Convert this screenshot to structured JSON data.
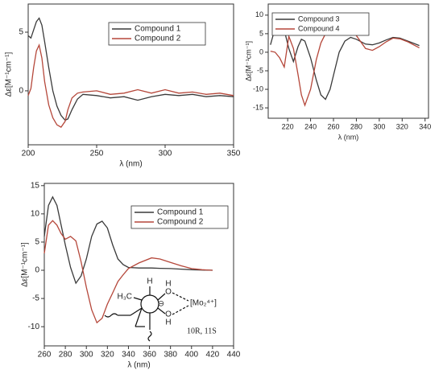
{
  "chart_data": [
    {
      "type": "line",
      "xlabel": "λ (nm)",
      "ylabel": "Δε[M⁻¹cm⁻¹]",
      "xlim": [
        200,
        350
      ],
      "ylim": [
        -4.6,
        7.4
      ],
      "xticks": [
        200,
        250,
        300,
        350
      ],
      "yticks": [
        0,
        5
      ],
      "x": [
        200,
        202,
        204,
        206,
        208,
        210,
        212,
        215,
        218,
        221,
        224,
        227,
        229,
        232,
        236,
        240,
        250,
        260,
        270,
        280,
        290,
        300,
        310,
        320,
        330,
        340,
        350
      ],
      "series": [
        {
          "name": "Compound 1",
          "color": "#3a3a3a",
          "values": [
            4.7,
            4.5,
            5.2,
            5.9,
            6.2,
            5.6,
            4.2,
            2.0,
            0.0,
            -1.3,
            -2.1,
            -2.5,
            -2.4,
            -1.6,
            -0.7,
            -0.3,
            -0.4,
            -0.6,
            -0.5,
            -0.8,
            -0.5,
            -0.3,
            -0.4,
            -0.3,
            -0.5,
            -0.4,
            -0.5
          ]
        },
        {
          "name": "Compound 2",
          "color": "#b5473a",
          "values": [
            -0.4,
            0.2,
            2.0,
            3.4,
            3.9,
            2.8,
            0.8,
            -1.2,
            -2.3,
            -2.9,
            -3.1,
            -2.6,
            -1.6,
            -0.6,
            -0.2,
            -0.1,
            0.0,
            -0.3,
            -0.2,
            0.1,
            -0.2,
            0.1,
            -0.2,
            -0.1,
            -0.3,
            -0.2,
            -0.4
          ]
        }
      ]
    },
    {
      "type": "line",
      "xlabel": "λ (nm)",
      "ylabel": "Δε[M⁻¹cm⁻¹]",
      "xlim": [
        203,
        343
      ],
      "ylim": [
        -17.8,
        13
      ],
      "xticks": [
        220,
        240,
        260,
        280,
        300,
        320,
        340
      ],
      "yticks": [
        -15,
        -10,
        -5,
        0,
        5,
        10
      ],
      "x": [
        205,
        209,
        213,
        217,
        221,
        225,
        229,
        232,
        235,
        240,
        245,
        249,
        253,
        257,
        261,
        265,
        270,
        275,
        280,
        288,
        294,
        300,
        306,
        312,
        318,
        325,
        335
      ],
      "series": [
        {
          "name": "Compound 3",
          "color": "#3a3a3a",
          "values": [
            2.0,
            6.5,
            8.5,
            6.0,
            1.0,
            -2.5,
            1.5,
            3.5,
            3.0,
            -1.5,
            -7.5,
            -11.5,
            -12.7,
            -10.0,
            -5.0,
            0.0,
            3.0,
            4.0,
            3.5,
            2.2,
            2.0,
            2.5,
            3.3,
            4.0,
            3.8,
            3.0,
            1.8
          ]
        },
        {
          "name": "Compound 4",
          "color": "#b5473a",
          "values": [
            0.3,
            0.0,
            -1.5,
            -4.0,
            4.3,
            1.0,
            -6.0,
            -11.5,
            -14.3,
            -10.0,
            -2.0,
            2.5,
            5.0,
            6.5,
            7.5,
            8.0,
            7.5,
            6.2,
            4.5,
            1.0,
            0.5,
            1.5,
            2.8,
            3.8,
            3.6,
            2.8,
            1.2
          ]
        }
      ]
    },
    {
      "type": "line",
      "xlabel": "λ (nm)",
      "ylabel": "Δε[M⁻¹cm⁻¹]",
      "xlim": [
        260,
        440
      ],
      "ylim": [
        -13.4,
        15.4
      ],
      "xticks": [
        260,
        280,
        300,
        320,
        340,
        360,
        380,
        400,
        420,
        440
      ],
      "yticks": [
        -10,
        -5,
        0,
        5,
        10,
        15
      ],
      "x": [
        260,
        264,
        268,
        272,
        276,
        280,
        285,
        290,
        295,
        300,
        305,
        310,
        315,
        320,
        325,
        330,
        335,
        340,
        350,
        362,
        370,
        380,
        390,
        400,
        410,
        420
      ],
      "series": [
        {
          "name": "Compound 1",
          "color": "#3a3a3a",
          "values": [
            6.0,
            11.5,
            13.0,
            11.5,
            8.0,
            4.5,
            0.5,
            -2.3,
            -1.0,
            2.0,
            6.0,
            8.2,
            8.7,
            7.5,
            4.5,
            2.0,
            1.0,
            0.5,
            0.4,
            0.4,
            0.35,
            0.3,
            0.2,
            0.1,
            0.05,
            0.0
          ]
        },
        {
          "name": "Compound 2",
          "color": "#b5473a",
          "values": [
            3.0,
            8.0,
            8.8,
            8.0,
            6.5,
            5.5,
            6.0,
            5.2,
            1.5,
            -3.0,
            -7.0,
            -9.3,
            -8.5,
            -6.0,
            -4.0,
            -2.0,
            -0.8,
            0.3,
            1.3,
            2.2,
            2.0,
            1.4,
            0.8,
            0.3,
            0.1,
            0.0
          ]
        }
      ]
    }
  ],
  "structure": {
    "top_h": "H",
    "methyl": "H₃C",
    "oxygen_upper": "O",
    "oxygen_lower": "O",
    "hydroxyl_h_upper": "H",
    "hydroxyl_h_lower": "H",
    "charge": "⊖",
    "metal": "[Mo₂⁴⁺]",
    "configuration": "10R, 11S"
  }
}
